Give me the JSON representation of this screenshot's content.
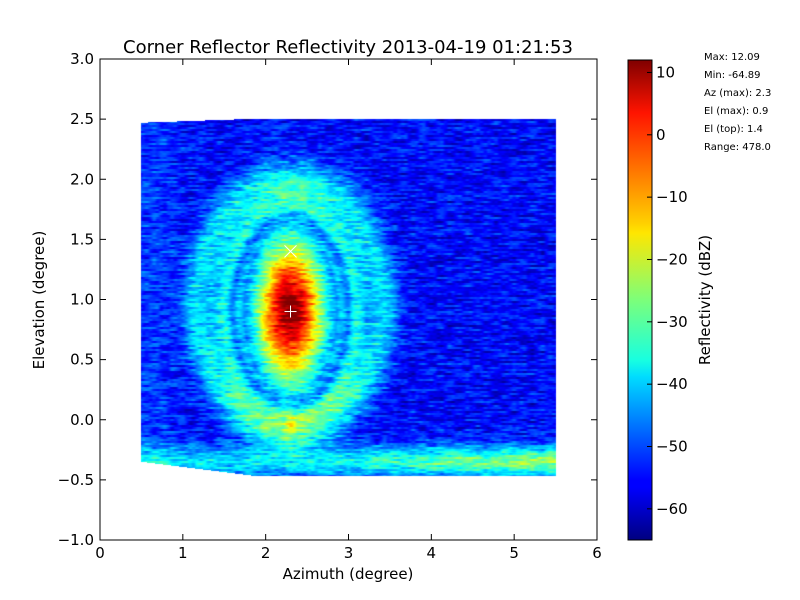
{
  "chart_data": {
    "type": "heatmap",
    "title": "Corner Reflector Reflectivity 2013-04-19 01:21:53",
    "xlabel": "Azimuth (degree)",
    "ylabel": "Elevation (degree)",
    "xlim": [
      0,
      6
    ],
    "ylim": [
      -1.0,
      3.0
    ],
    "x_ticks": [
      0,
      1,
      2,
      3,
      4,
      5,
      6
    ],
    "x_tick_labels": [
      "0",
      "1",
      "2",
      "3",
      "4",
      "5",
      "6"
    ],
    "y_ticks": [
      -1.0,
      -0.5,
      0.0,
      0.5,
      1.0,
      1.5,
      2.0,
      2.5,
      3.0
    ],
    "y_tick_labels": [
      "−1.0",
      "−0.5",
      "0.0",
      "0.5",
      "1.0",
      "1.5",
      "2.0",
      "2.5",
      "3.0"
    ],
    "grid": false,
    "colormap": "jet",
    "colorbar": {
      "label": "Reflectivity (dBZ)",
      "range": [
        -65,
        12
      ],
      "ticks": [
        10,
        0,
        -10,
        -20,
        -30,
        -40,
        -50,
        -60
      ],
      "tick_labels": [
        "10",
        "0",
        "−10",
        "−20",
        "−30",
        "−40",
        "−50",
        "−60"
      ]
    },
    "data_extent": {
      "azimuth": [
        0.5,
        5.5
      ],
      "elevation_left": [
        -0.35,
        2.47
      ],
      "elevation_right": [
        -0.47,
        2.5
      ]
    },
    "features": {
      "core_peak": {
        "az": 2.3,
        "el": 0.9,
        "dbz": 12.09
      },
      "lower_lobe": {
        "az": 2.3,
        "el": -0.05,
        "dbz": -17
      },
      "ring1_radius_deg": [
        0.7,
        0.78
      ],
      "ring2_radius_deg": [
        1.45,
        1.35
      ],
      "ground_clutter_el": -0.35,
      "background_dbz": -55
    },
    "markers": [
      {
        "symbol": "+",
        "az": 2.3,
        "el": 0.9,
        "meaning": "max"
      },
      {
        "symbol": "x",
        "az": 2.3,
        "el": 1.4,
        "meaning": "top"
      }
    ],
    "info_text": [
      "Max: 12.09",
      "Min: -64.89",
      "Az (max): 2.3",
      "El (max): 0.9",
      "El (top): 1.4",
      "Range: 478.0"
    ]
  }
}
